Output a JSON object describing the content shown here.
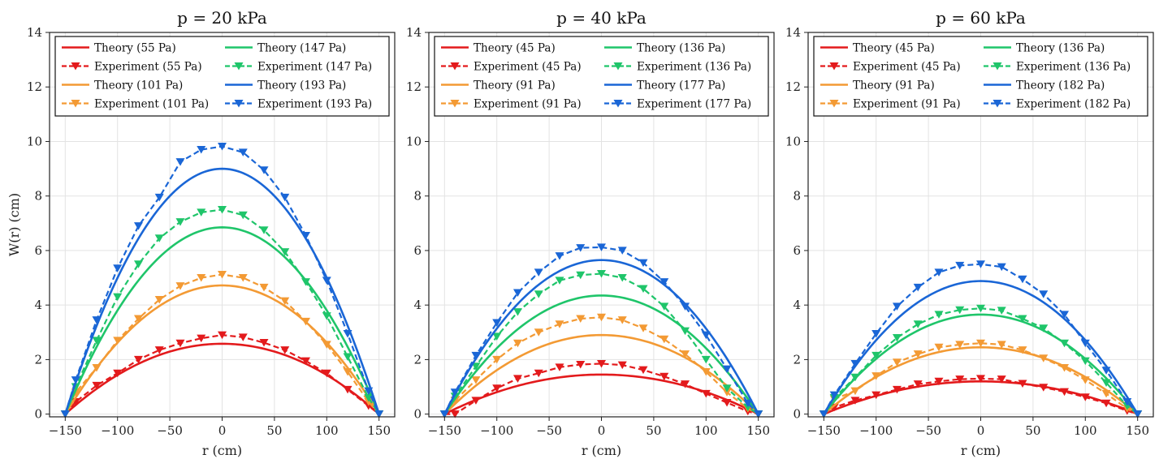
{
  "chart_data": [
    {
      "type": "line",
      "title": "p = 20 kPa",
      "xlabel": "r (cm)",
      "ylabel": "W(r) (cm)",
      "xlim": [
        -165,
        165
      ],
      "ylim": [
        -0.1,
        14
      ],
      "xticks": [
        -150,
        -100,
        -50,
        0,
        50,
        100,
        150
      ],
      "yticks": [
        0,
        2,
        4,
        6,
        8,
        10,
        12,
        14
      ],
      "grid": true,
      "legend": "top, 2 columns",
      "series": [
        {
          "name": "Theory (55 Pa)",
          "kind": "theory",
          "color": "#e31a1c",
          "peak": 2.58
        },
        {
          "name": "Experiment (55 Pa)",
          "kind": "experiment",
          "color": "#e31a1c",
          "x": [
            -150,
            -140,
            -120,
            -100,
            -80,
            -60,
            -40,
            -20,
            0,
            20,
            40,
            60,
            80,
            100,
            120,
            140,
            150
          ],
          "y": [
            0,
            0.45,
            1.05,
            1.5,
            2.0,
            2.35,
            2.6,
            2.78,
            2.9,
            2.82,
            2.62,
            2.35,
            1.95,
            1.5,
            0.9,
            0.3,
            0
          ]
        },
        {
          "name": "Theory (101 Pa)",
          "kind": "theory",
          "color": "#f39a34",
          "peak": 4.72
        },
        {
          "name": "Experiment (101 Pa)",
          "kind": "experiment",
          "color": "#f39a34",
          "x": [
            -150,
            -140,
            -120,
            -100,
            -80,
            -60,
            -40,
            -20,
            0,
            20,
            40,
            60,
            80,
            100,
            120,
            140,
            150
          ],
          "y": [
            0,
            0.8,
            1.7,
            2.7,
            3.5,
            4.2,
            4.7,
            5.0,
            5.12,
            5.0,
            4.65,
            4.15,
            3.4,
            2.55,
            1.55,
            0.45,
            0
          ]
        },
        {
          "name": "Theory (147 Pa)",
          "kind": "theory",
          "color": "#1fc56a",
          "peak": 6.85
        },
        {
          "name": "Experiment (147 Pa)",
          "kind": "experiment",
          "color": "#1fc56a",
          "x": [
            -150,
            -140,
            -120,
            -100,
            -80,
            -60,
            -40,
            -20,
            0,
            20,
            40,
            60,
            80,
            100,
            120,
            140,
            150
          ],
          "y": [
            0,
            1.0,
            2.7,
            4.3,
            5.5,
            6.45,
            7.05,
            7.4,
            7.5,
            7.3,
            6.75,
            5.95,
            4.85,
            3.6,
            2.1,
            0.6,
            0
          ]
        },
        {
          "name": "Theory (193 Pa)",
          "kind": "theory",
          "color": "#1a66d6",
          "peak": 9.0
        },
        {
          "name": "Experiment (193 Pa)",
          "kind": "experiment",
          "color": "#1a66d6",
          "x": [
            -150,
            -140,
            -120,
            -100,
            -80,
            -60,
            -40,
            -20,
            0,
            20,
            40,
            60,
            80,
            100,
            120,
            140,
            150
          ],
          "y": [
            0,
            1.25,
            3.45,
            5.35,
            6.9,
            7.95,
            9.25,
            9.7,
            9.82,
            9.6,
            8.95,
            7.95,
            6.55,
            4.9,
            2.95,
            0.85,
            0
          ]
        }
      ]
    },
    {
      "type": "line",
      "title": "p = 40 kPa",
      "xlabel": "r (cm)",
      "ylabel": "",
      "xlim": [
        -165,
        165
      ],
      "ylim": [
        -0.1,
        14
      ],
      "xticks": [
        -150,
        -100,
        -50,
        0,
        50,
        100,
        150
      ],
      "yticks": [
        0,
        2,
        4,
        6,
        8,
        10,
        12,
        14
      ],
      "grid": true,
      "legend": "top, 2 columns",
      "series": [
        {
          "name": "Theory (45 Pa)",
          "kind": "theory",
          "color": "#e31a1c",
          "peak": 1.45
        },
        {
          "name": "Experiment (45 Pa)",
          "kind": "experiment",
          "color": "#e31a1c",
          "x": [
            -150,
            -140,
            -120,
            -100,
            -80,
            -60,
            -40,
            -20,
            0,
            20,
            40,
            60,
            80,
            100,
            120,
            140,
            150
          ],
          "y": [
            0,
            0.0,
            0.5,
            0.95,
            1.3,
            1.5,
            1.72,
            1.82,
            1.85,
            1.8,
            1.62,
            1.38,
            1.1,
            0.75,
            0.42,
            0.1,
            0
          ]
        },
        {
          "name": "Theory (91 Pa)",
          "kind": "theory",
          "color": "#f39a34",
          "peak": 2.9
        },
        {
          "name": "Experiment (91 Pa)",
          "kind": "experiment",
          "color": "#f39a34",
          "x": [
            -150,
            -140,
            -120,
            -100,
            -80,
            -60,
            -40,
            -20,
            0,
            20,
            40,
            60,
            80,
            100,
            120,
            140,
            150
          ],
          "y": [
            0,
            0.5,
            1.25,
            2.0,
            2.6,
            3.0,
            3.3,
            3.5,
            3.55,
            3.45,
            3.15,
            2.75,
            2.2,
            1.55,
            0.8,
            0.2,
            0
          ]
        },
        {
          "name": "Theory (136 Pa)",
          "kind": "theory",
          "color": "#1fc56a",
          "peak": 4.35
        },
        {
          "name": "Experiment (136 Pa)",
          "kind": "experiment",
          "color": "#1fc56a",
          "x": [
            -150,
            -140,
            -120,
            -100,
            -80,
            -60,
            -40,
            -20,
            0,
            20,
            40,
            60,
            80,
            100,
            120,
            140,
            150
          ],
          "y": [
            0,
            0.65,
            1.75,
            2.85,
            3.75,
            4.4,
            4.9,
            5.1,
            5.15,
            5.0,
            4.6,
            3.95,
            3.05,
            2.0,
            0.95,
            0.25,
            0
          ]
        },
        {
          "name": "Theory (177 Pa)",
          "kind": "theory",
          "color": "#1a66d6",
          "peak": 5.65
        },
        {
          "name": "Experiment (177 Pa)",
          "kind": "experiment",
          "color": "#1a66d6",
          "x": [
            -150,
            -140,
            -120,
            -100,
            -80,
            -60,
            -40,
            -20,
            0,
            20,
            40,
            60,
            80,
            100,
            120,
            140,
            150
          ],
          "y": [
            0,
            0.8,
            2.15,
            3.35,
            4.45,
            5.2,
            5.8,
            6.1,
            6.12,
            6.0,
            5.55,
            4.85,
            3.95,
            2.9,
            1.65,
            0.4,
            0
          ]
        }
      ]
    },
    {
      "type": "line",
      "title": "p = 60 kPa",
      "xlabel": "r (cm)",
      "ylabel": "",
      "xlim": [
        -165,
        165
      ],
      "ylim": [
        -0.1,
        14
      ],
      "xticks": [
        -150,
        -100,
        -50,
        0,
        50,
        100,
        150
      ],
      "yticks": [
        0,
        2,
        4,
        6,
        8,
        10,
        12,
        14
      ],
      "grid": true,
      "legend": "top, 2 columns",
      "series": [
        {
          "name": "Theory (45 Pa)",
          "kind": "theory",
          "color": "#e31a1c",
          "peak": 1.2
        },
        {
          "name": "Experiment (45 Pa)",
          "kind": "experiment",
          "color": "#e31a1c",
          "x": [
            -150,
            -140,
            -120,
            -100,
            -80,
            -60,
            -40,
            -20,
            0,
            20,
            40,
            60,
            80,
            100,
            120,
            140,
            150
          ],
          "y": [
            0,
            0.25,
            0.5,
            0.7,
            0.9,
            1.1,
            1.2,
            1.28,
            1.3,
            1.28,
            1.12,
            0.98,
            0.82,
            0.62,
            0.4,
            0.12,
            0
          ]
        },
        {
          "name": "Theory (91 Pa)",
          "kind": "theory",
          "color": "#f39a34",
          "peak": 2.45
        },
        {
          "name": "Experiment (91 Pa)",
          "kind": "experiment",
          "color": "#f39a34",
          "x": [
            -150,
            -140,
            -120,
            -100,
            -80,
            -60,
            -40,
            -20,
            0,
            20,
            40,
            60,
            80,
            100,
            120,
            140,
            150
          ],
          "y": [
            0,
            0.55,
            0.85,
            1.4,
            1.9,
            2.2,
            2.45,
            2.55,
            2.6,
            2.55,
            2.35,
            2.05,
            1.7,
            1.25,
            0.75,
            0.2,
            0
          ]
        },
        {
          "name": "Theory (136 Pa)",
          "kind": "theory",
          "color": "#1fc56a",
          "peak": 3.65
        },
        {
          "name": "Experiment (136 Pa)",
          "kind": "experiment",
          "color": "#1fc56a",
          "x": [
            -150,
            -140,
            -120,
            -100,
            -80,
            -60,
            -40,
            -20,
            0,
            20,
            40,
            60,
            80,
            100,
            120,
            140,
            150
          ],
          "y": [
            0,
            0.6,
            1.35,
            2.15,
            2.8,
            3.3,
            3.65,
            3.82,
            3.88,
            3.8,
            3.5,
            3.15,
            2.6,
            1.95,
            1.15,
            0.3,
            0
          ]
        },
        {
          "name": "Theory (182 Pa)",
          "kind": "theory",
          "color": "#1a66d6",
          "peak": 4.88
        },
        {
          "name": "Experiment (182 Pa)",
          "kind": "experiment",
          "color": "#1a66d6",
          "x": [
            -150,
            -140,
            -120,
            -100,
            -80,
            -60,
            -40,
            -20,
            0,
            20,
            40,
            60,
            80,
            100,
            120,
            140,
            150
          ],
          "y": [
            0,
            0.7,
            1.85,
            2.95,
            3.95,
            4.65,
            5.2,
            5.45,
            5.5,
            5.4,
            4.95,
            4.4,
            3.65,
            2.6,
            1.6,
            0.45,
            0
          ]
        }
      ]
    }
  ]
}
